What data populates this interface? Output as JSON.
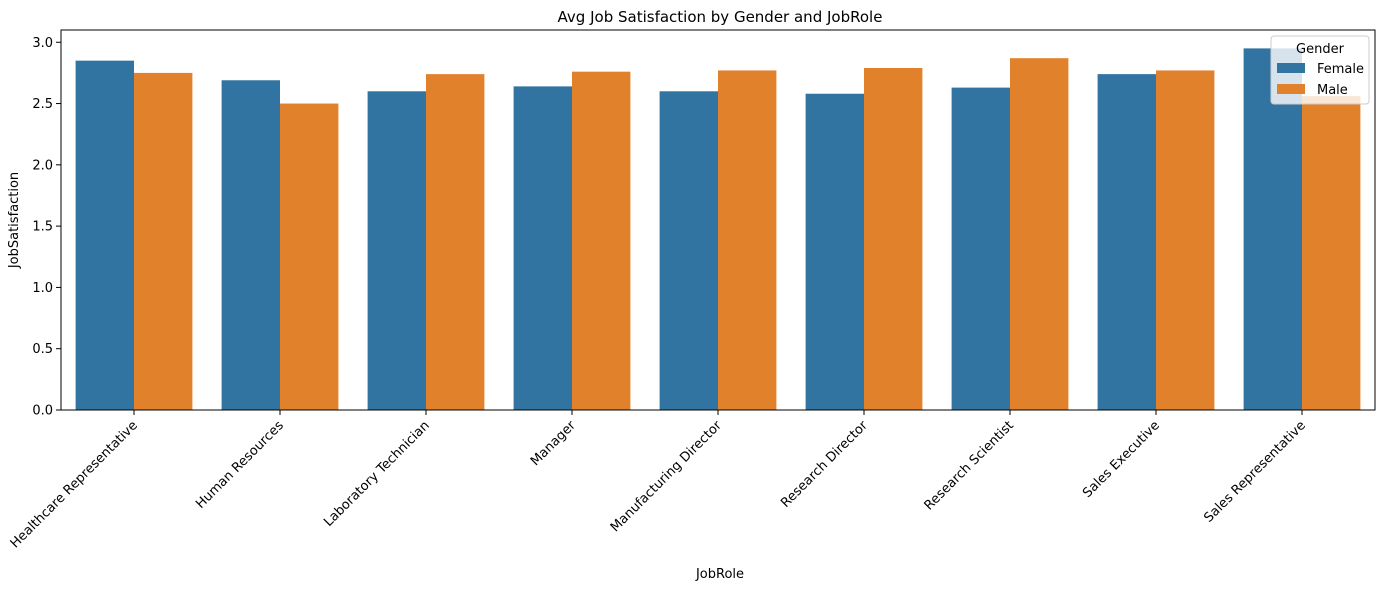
{
  "chart_data": {
    "type": "bar",
    "title": "Avg Job Satisfaction by Gender and JobRole",
    "xlabel": "JobRole",
    "ylabel": "JobSatisfaction",
    "ylim": [
      0,
      3.1
    ],
    "yticks": [
      "0.0",
      "0.5",
      "1.0",
      "1.5",
      "2.0",
      "2.5",
      "3.0"
    ],
    "grid": false,
    "legend": {
      "title": "Gender",
      "placement": "top-right"
    },
    "categories": [
      "Healthcare Representative",
      "Human Resources",
      "Laboratory Technician",
      "Manager",
      "Manufacturing Director",
      "Research Director",
      "Research Scientist",
      "Sales Executive",
      "Sales Representative"
    ],
    "series": [
      {
        "name": "Female",
        "color": "#3274a1",
        "values": [
          2.85,
          2.69,
          2.6,
          2.64,
          2.6,
          2.58,
          2.63,
          2.74,
          2.95
        ]
      },
      {
        "name": "Male",
        "color": "#e1812c",
        "values": [
          2.75,
          2.5,
          2.74,
          2.76,
          2.77,
          2.79,
          2.87,
          2.77,
          2.56
        ]
      }
    ]
  }
}
